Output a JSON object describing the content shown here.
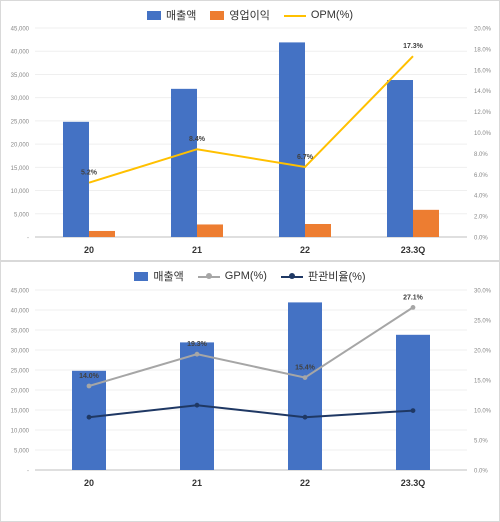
{
  "chart_data": [
    {
      "type": "bar",
      "categories": [
        "20",
        "21",
        "22",
        "23.3Q"
      ],
      "series": [
        {
          "name": "매출액",
          "kind": "bar",
          "axis": "left",
          "color": "#4472C4",
          "values": [
            24800,
            31900,
            41900,
            33800
          ]
        },
        {
          "name": "영업이익",
          "kind": "bar",
          "axis": "left",
          "color": "#ED7D31",
          "values": [
            1300,
            2700,
            2800,
            5850
          ]
        },
        {
          "name": "OPM(%)",
          "kind": "line",
          "axis": "right",
          "color": "#FFC000",
          "values": [
            5.2,
            8.4,
            6.7,
            17.3
          ],
          "labels": [
            "5.2%",
            "8.4%",
            "6.7%",
            "17.3%"
          ]
        }
      ],
      "y_left": {
        "min": 0,
        "max": 45000,
        "step": 5000,
        "ticks": [
          "-",
          "5,000",
          "10,000",
          "15,000",
          "20,000",
          "25,000",
          "30,000",
          "35,000",
          "40,000",
          "45,000"
        ]
      },
      "y_right": {
        "min": 0,
        "max": 20,
        "step": 2,
        "ticks": [
          "0.0%",
          "2.0%",
          "4.0%",
          "6.0%",
          "8.0%",
          "10.0%",
          "12.0%",
          "14.0%",
          "16.0%",
          "18.0%",
          "20.0%"
        ]
      },
      "legend_position": "top"
    },
    {
      "type": "bar",
      "categories": [
        "20",
        "21",
        "22",
        "23.3Q"
      ],
      "series": [
        {
          "name": "매출액",
          "kind": "bar",
          "axis": "left",
          "color": "#4472C4",
          "values": [
            24800,
            31900,
            41900,
            33800
          ]
        },
        {
          "name": "GPM(%)",
          "kind": "line",
          "axis": "right",
          "color": "#A6A6A6",
          "marker": true,
          "values": [
            14.0,
            19.3,
            15.4,
            27.1
          ],
          "labels": [
            "14.0%",
            "19.3%",
            "15.4%",
            "27.1%"
          ]
        },
        {
          "name": "판관비율(%)",
          "kind": "line",
          "axis": "right",
          "color": "#1F3864",
          "marker": true,
          "values": [
            8.8,
            10.8,
            8.8,
            9.9
          ],
          "labels": [
            "",
            "",
            "",
            ""
          ]
        }
      ],
      "y_left": {
        "min": 0,
        "max": 45000,
        "step": 5000,
        "ticks": [
          "-",
          "5,000",
          "10,000",
          "15,000",
          "20,000",
          "25,000",
          "30,000",
          "35,000",
          "40,000",
          "45,000"
        ]
      },
      "y_right": {
        "min": 0,
        "max": 30,
        "step": 5,
        "ticks": [
          "0.0%",
          "5.0%",
          "10.0%",
          "15.0%",
          "20.0%",
          "25.0%",
          "30.0%"
        ]
      },
      "legend_position": "top"
    }
  ]
}
